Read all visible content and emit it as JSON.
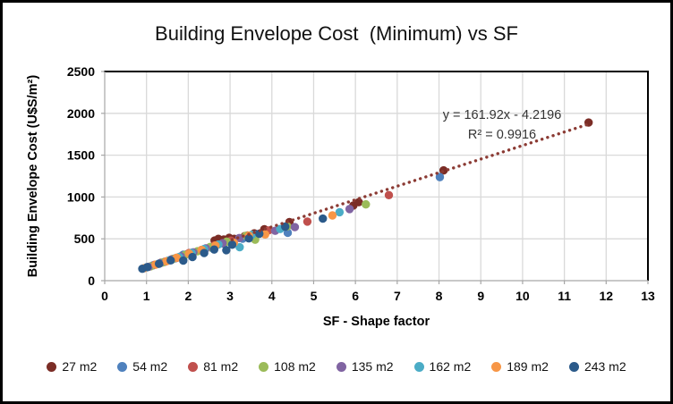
{
  "title": "Building Envelope Cost  (Minimum) vs SF",
  "chart_data": {
    "type": "scatter",
    "title": "Building Envelope Cost  (Minimum) vs SF",
    "xlabel": "SF - Shape factor",
    "ylabel": "Building Envelope Cost (U$S/m²)",
    "xlim": [
      0,
      13
    ],
    "ylim": [
      0,
      2500
    ],
    "xticks": [
      0,
      1,
      2,
      3,
      4,
      5,
      6,
      7,
      8,
      9,
      10,
      11,
      12,
      13
    ],
    "yticks": [
      0,
      500,
      1000,
      1500,
      2000,
      2500
    ],
    "grid": true,
    "grid_color": "#d9d9d9",
    "axis_color": "#a6a6a6",
    "plot_border_color": "#000000",
    "legend_position": "bottom",
    "marker": "circle",
    "series": [
      {
        "name": "27 m2",
        "color": "#7b2d26",
        "points": [
          [
            1.35,
            214
          ],
          [
            1.62,
            258
          ],
          [
            1.93,
            311
          ],
          [
            2.63,
            480
          ],
          [
            2.72,
            500
          ],
          [
            2.85,
            492
          ],
          [
            2.98,
            512
          ],
          [
            3.1,
            500
          ],
          [
            3.35,
            532
          ],
          [
            3.58,
            565
          ],
          [
            3.82,
            615
          ],
          [
            4.42,
            700
          ],
          [
            5.95,
            898
          ],
          [
            6.08,
            938
          ],
          [
            8.11,
            1318
          ],
          [
            11.58,
            1890
          ]
        ]
      },
      {
        "name": "54 m2",
        "color": "#4f81bd",
        "points": [
          [
            1.15,
            182
          ],
          [
            1.42,
            222
          ],
          [
            1.68,
            266
          ],
          [
            1.88,
            310
          ],
          [
            2.1,
            336
          ],
          [
            2.35,
            362
          ],
          [
            2.55,
            396
          ],
          [
            2.85,
            440
          ],
          [
            3.3,
            502
          ],
          [
            3.62,
            548
          ],
          [
            4.38,
            572
          ],
          [
            8.02,
            1238
          ]
        ]
      },
      {
        "name": "81 m2",
        "color": "#c0504d",
        "points": [
          [
            1.2,
            190
          ],
          [
            1.45,
            228
          ],
          [
            1.72,
            272
          ],
          [
            2.02,
            330
          ],
          [
            2.32,
            368
          ],
          [
            2.62,
            420
          ],
          [
            3.02,
            478
          ],
          [
            3.42,
            540
          ],
          [
            3.92,
            600
          ],
          [
            4.85,
            706
          ],
          [
            6.8,
            1022
          ]
        ]
      },
      {
        "name": "108 m2",
        "color": "#9bbb59",
        "points": [
          [
            1.1,
            172
          ],
          [
            1.38,
            216
          ],
          [
            1.62,
            256
          ],
          [
            1.92,
            306
          ],
          [
            2.22,
            352
          ],
          [
            2.52,
            402
          ],
          [
            2.92,
            466
          ],
          [
            3.38,
            536
          ],
          [
            3.6,
            490
          ],
          [
            4.37,
            649
          ],
          [
            6.25,
            912
          ]
        ]
      },
      {
        "name": "135 m2",
        "color": "#8064a2",
        "points": [
          [
            1.05,
            165
          ],
          [
            1.32,
            208
          ],
          [
            1.58,
            250
          ],
          [
            1.82,
            290
          ],
          [
            2.12,
            338
          ],
          [
            2.42,
            386
          ],
          [
            2.82,
            448
          ],
          [
            3.22,
            510
          ],
          [
            4.08,
            596
          ],
          [
            4.55,
            640
          ],
          [
            5.86,
            856
          ]
        ]
      },
      {
        "name": "162 m2",
        "color": "#4bacc6",
        "points": [
          [
            1.0,
            158
          ],
          [
            1.28,
            200
          ],
          [
            1.52,
            240
          ],
          [
            1.78,
            282
          ],
          [
            2.08,
            330
          ],
          [
            2.38,
            378
          ],
          [
            2.72,
            432
          ],
          [
            3.23,
            400
          ],
          [
            3.52,
            548
          ],
          [
            4.2,
            618
          ],
          [
            5.62,
            818
          ]
        ]
      },
      {
        "name": "189 m2",
        "color": "#f79646",
        "points": [
          [
            0.95,
            150
          ],
          [
            1.22,
            192
          ],
          [
            1.48,
            232
          ],
          [
            1.72,
            274
          ],
          [
            2.02,
            322
          ],
          [
            2.32,
            366
          ],
          [
            2.65,
            420
          ],
          [
            3.09,
            453
          ],
          [
            3.45,
            538
          ],
          [
            3.84,
            553
          ],
          [
            5.45,
            780
          ]
        ]
      },
      {
        "name": "243 m2",
        "color": "#2b5a8a",
        "points": [
          [
            0.9,
            142
          ],
          [
            1.02,
            162
          ],
          [
            1.3,
            202
          ],
          [
            1.58,
            242
          ],
          [
            1.88,
            240
          ],
          [
            2.1,
            282
          ],
          [
            2.38,
            330
          ],
          [
            2.62,
            372
          ],
          [
            2.91,
            364
          ],
          [
            3.05,
            430
          ],
          [
            3.45,
            505
          ],
          [
            3.7,
            561
          ],
          [
            4.32,
            645
          ],
          [
            5.22,
            742
          ]
        ]
      }
    ],
    "trendline": {
      "slope": 161.92,
      "intercept": -4.2196,
      "x_start": 3.05,
      "x_end": 11.58,
      "color": "#8b3a33",
      "style": "dotted",
      "equation": "y = 161.92x - 4.2196",
      "r_squared": "R² = 0.9916",
      "label_x": 558,
      "label_y1": 130,
      "label_y2": 152
    }
  }
}
